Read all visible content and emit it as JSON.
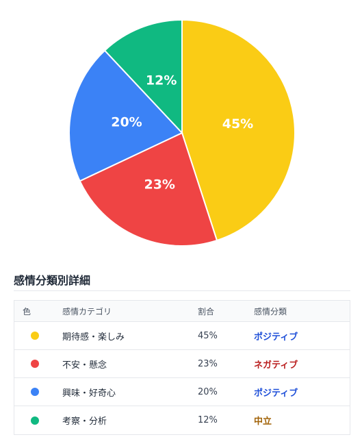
{
  "chart_data": {
    "type": "pie",
    "title": "",
    "slices": [
      {
        "label": "期待感・楽しみ",
        "value": 45,
        "display": "45%",
        "color": "#facc15"
      },
      {
        "label": "不安・懸念",
        "value": 23,
        "display": "23%",
        "color": "#ef4444"
      },
      {
        "label": "興味・好奇心",
        "value": 20,
        "display": "20%",
        "color": "#3b82f6"
      },
      {
        "label": "考察・分析",
        "value": 12,
        "display": "12%",
        "color": "#10b981"
      }
    ]
  },
  "table": {
    "title": "感情分類別詳細",
    "headers": {
      "color": "色",
      "category": "感情カテゴリ",
      "ratio": "割合",
      "classification": "感情分類"
    },
    "rows": [
      {
        "category": "期待感・楽しみ",
        "ratio": "45%",
        "classification": "ポジティブ",
        "dot_color": "#facc15",
        "class_color": "#1d4ed8"
      },
      {
        "category": "不安・懸念",
        "ratio": "23%",
        "classification": "ネガティブ",
        "dot_color": "#ef4444",
        "class_color": "#b91c1c"
      },
      {
        "category": "興味・好奇心",
        "ratio": "20%",
        "classification": "ポジティブ",
        "dot_color": "#3b82f6",
        "class_color": "#1d4ed8"
      },
      {
        "category": "考察・分析",
        "ratio": "12%",
        "classification": "中立",
        "dot_color": "#10b981",
        "class_color": "#a16207"
      }
    ]
  }
}
